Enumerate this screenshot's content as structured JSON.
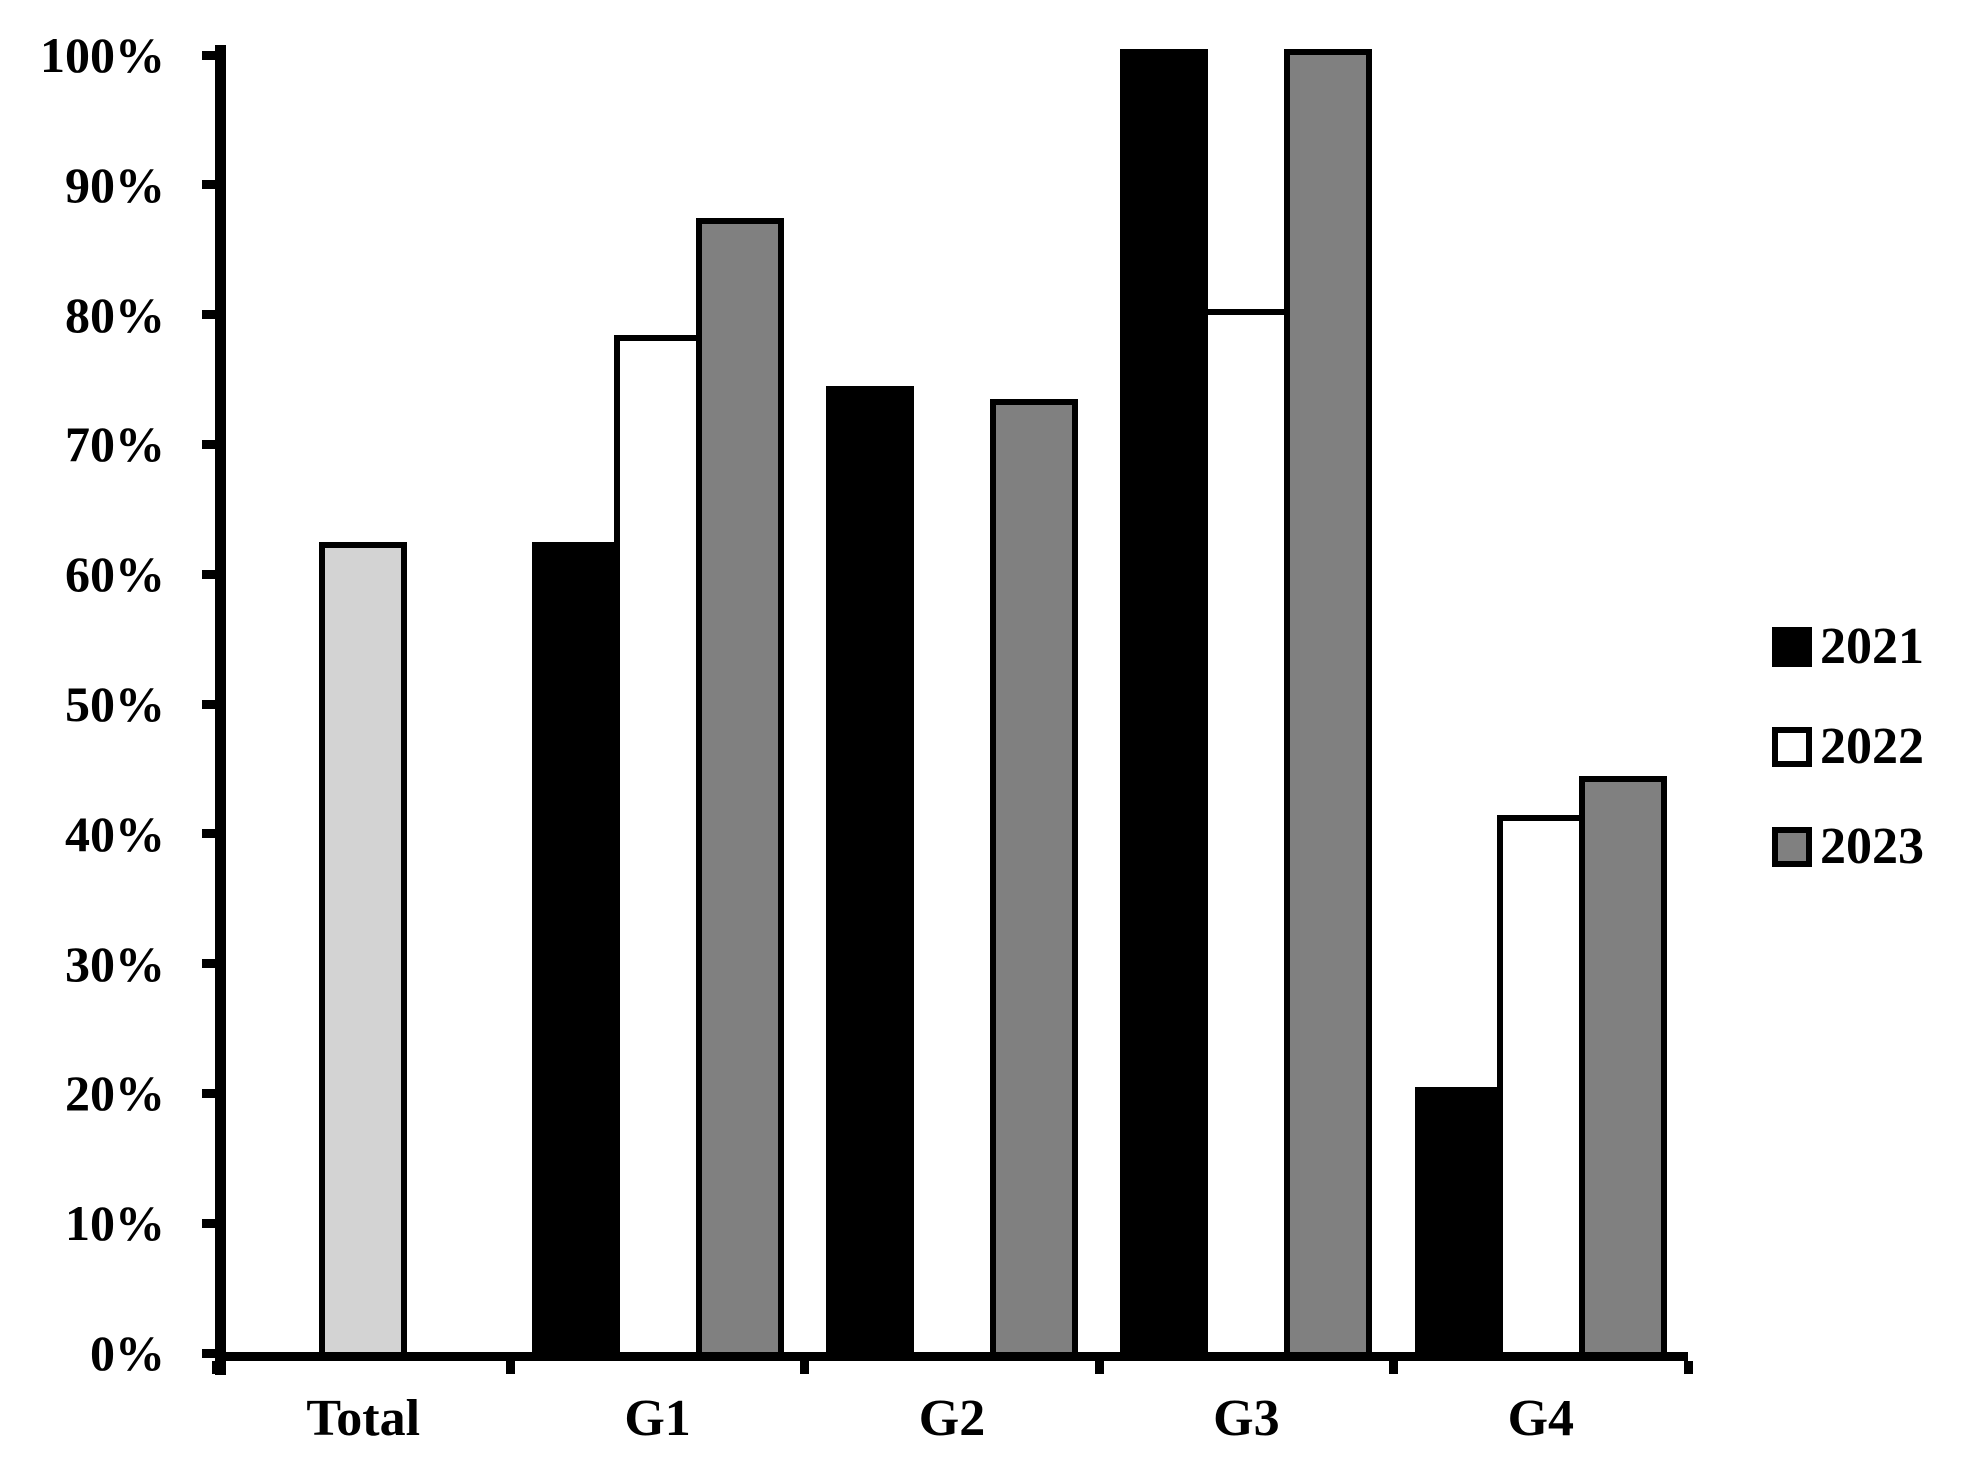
{
  "figure": {
    "background_color": "#ffffff",
    "text_color": "#000000"
  },
  "chart_data": {
    "type": "bar",
    "title": "",
    "xlabel": "",
    "ylabel": "",
    "unit": "percent",
    "ylim": [
      0,
      100
    ],
    "grid": "off",
    "y_tick_labels": [
      "0%",
      "10%",
      "20%",
      "30%",
      "40%",
      "50%",
      "60%",
      "70%",
      "80%",
      "90%",
      "100%"
    ],
    "categories": [
      "Total",
      "G1",
      "G2",
      "G3",
      "G4"
    ],
    "series": [
      {
        "name": "2021",
        "color": "#000000",
        "values": [
          null,
          62,
          74,
          100,
          20
        ]
      },
      {
        "name": "2022",
        "color": "#ffffff",
        "values": [
          null,
          78,
          null,
          80,
          41
        ]
      },
      {
        "name": "2023",
        "color": "#808080",
        "values": [
          null,
          87,
          73,
          100,
          44
        ]
      }
    ],
    "total_bar": {
      "category": "Total",
      "value": 62,
      "color": "#d3d3d3"
    },
    "bar_outline_color": "#000000",
    "axis_color": "#000000",
    "legend": {
      "position": "right",
      "items": [
        {
          "label": "2021",
          "color": "#000000"
        },
        {
          "label": "2022",
          "color": "#ffffff"
        },
        {
          "label": "2023",
          "color": "#808080"
        }
      ]
    }
  }
}
